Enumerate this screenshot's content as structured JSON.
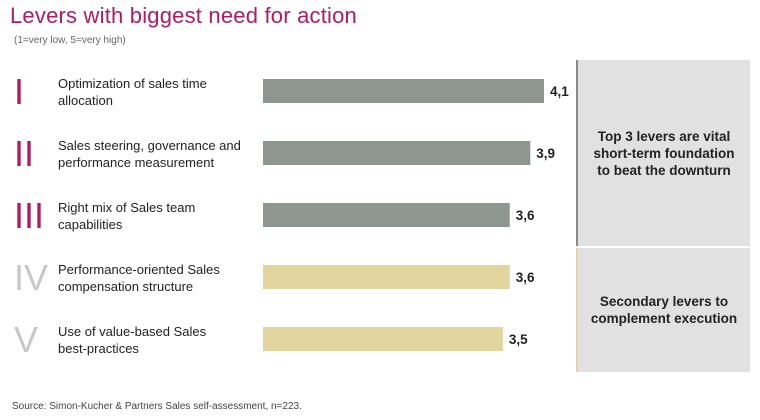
{
  "title": "Levers with biggest need for action",
  "subtitle": "(1=very low, 5=very high)",
  "chart_data": {
    "type": "bar",
    "orientation": "horizontal",
    "title": "Levers with biggest need for action",
    "subtitle": "(1=very low, 5=very high)",
    "categories": [
      "Optimization of sales time allocation",
      "Sales steering, governance and performance measurement",
      "Right mix of Sales team capabilities",
      "Performance-oriented Sales compensation structure",
      "Use of value-based Sales best-practices"
    ],
    "category_lines": [
      [
        "Optimization of sales time",
        "allocation"
      ],
      [
        "Sales steering, governance and",
        "performance measurement"
      ],
      [
        "Right mix of Sales team",
        "capabilities"
      ],
      [
        "Performance-oriented Sales",
        "compensation structure"
      ],
      [
        "Use of value-based Sales",
        "best-practices"
      ]
    ],
    "numerals": [
      "I",
      "II",
      "III",
      "IV",
      "V"
    ],
    "values": [
      4.1,
      3.9,
      3.6,
      3.6,
      3.5
    ],
    "value_labels": [
      "4,1",
      "3,9",
      "3,6",
      "3,6",
      "3,5"
    ],
    "groups": [
      "top",
      "top",
      "top",
      "secondary",
      "secondary"
    ],
    "xlim": [
      0,
      4.1
    ],
    "grid": false,
    "colors": {
      "top_bar": "#8f9692",
      "secondary_bar": "#e3d59e",
      "top_numeral": "#b5195f",
      "secondary_numeral": "#c8c8c8"
    }
  },
  "panels": {
    "top_text": "Top 3 levers are vital short-term foundation to beat the downturn",
    "secondary_text": "Secondary levers to complement execution"
  },
  "source": "Source: Simon-Kucher & Partners Sales self-assessment, n=223."
}
